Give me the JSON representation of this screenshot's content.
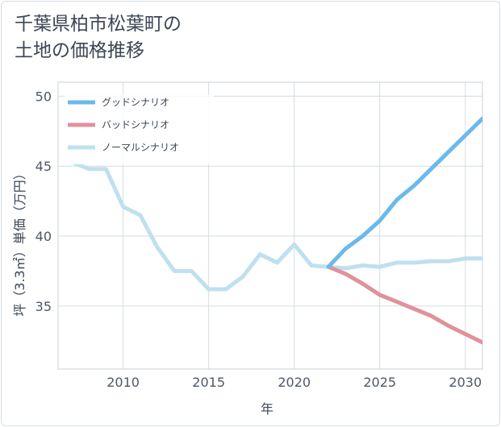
{
  "title_lines": [
    "千葉県柏市松葉町の",
    "土地の価格推移"
  ],
  "chart_data": {
    "type": "line",
    "xlabel": "年",
    "ylabel": "坪（3.3㎡）単価（万円）",
    "xlim": [
      2006.2,
      2031
    ],
    "ylim": [
      30.5,
      51
    ],
    "x_ticks": [
      2010,
      2015,
      2020,
      2025,
      2030
    ],
    "y_ticks": [
      35,
      40,
      45,
      50
    ],
    "grid": true,
    "legend_position": "top-left",
    "series": [
      {
        "name": "グッドシナリオ",
        "color": "#6cb9ea",
        "x": [
          2022,
          2023,
          2024,
          2025,
          2026,
          2027,
          2028,
          2029,
          2030,
          2031
        ],
        "values": [
          37.8,
          39.1,
          40.0,
          41.1,
          42.6,
          43.6,
          44.8,
          46.0,
          47.2,
          48.4
        ]
      },
      {
        "name": "バッドシナリオ",
        "color": "#e0929b",
        "x": [
          2022,
          2023,
          2024,
          2025,
          2026,
          2027,
          2028,
          2029,
          2030,
          2031
        ],
        "values": [
          37.8,
          37.3,
          36.6,
          35.8,
          35.3,
          34.8,
          34.3,
          33.6,
          33.0,
          32.4
        ]
      },
      {
        "name": "ノーマルシナリオ",
        "color": "#bfe0ee",
        "x": [
          2007,
          2008,
          2009,
          2010,
          2011,
          2012,
          2013,
          2014,
          2015,
          2016,
          2017,
          2018,
          2019,
          2020,
          2021,
          2022,
          2023,
          2024,
          2025,
          2026,
          2027,
          2028,
          2029,
          2030,
          2031
        ],
        "values": [
          45.3,
          44.8,
          44.8,
          42.1,
          41.5,
          39.2,
          37.5,
          37.5,
          36.2,
          36.2,
          37.1,
          38.7,
          38.1,
          39.4,
          37.9,
          37.8,
          37.7,
          37.9,
          37.8,
          38.1,
          38.1,
          38.2,
          38.2,
          38.4,
          38.4
        ]
      }
    ]
  }
}
